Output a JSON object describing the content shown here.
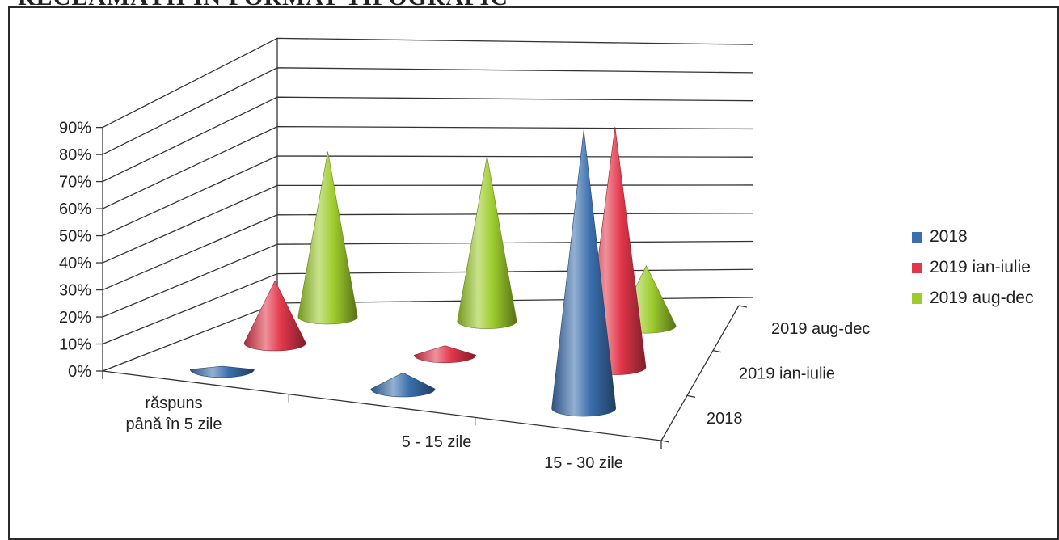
{
  "heading": "RECLAMAȚII ÎN FORMAT TIPOGRAFIC",
  "chart_data": {
    "type": "3d-cone",
    "title": "",
    "categories": [
      "răspuns până în 5 zile",
      "5 - 15 zile",
      "15 - 30 zile"
    ],
    "series": [
      {
        "name": "2018",
        "color": "#3a6fad",
        "values": [
          0.01,
          0.05,
          0.86
        ]
      },
      {
        "name": "2019 ian-iulie",
        "color": "#e2364a",
        "values": [
          0.2,
          0.03,
          0.77
        ]
      },
      {
        "name": "2019 aug-dec",
        "color": "#9dcc2c",
        "values": [
          0.55,
          0.55,
          0.2
        ]
      }
    ],
    "y_ticks": [
      "0%",
      "10%",
      "20%",
      "30%",
      "40%",
      "50%",
      "60%",
      "70%",
      "80%",
      "90%"
    ],
    "ylim": [
      0,
      0.9
    ],
    "depth_labels": [
      "2018",
      "2019 ian-iulie",
      "2019 aug-dec"
    ],
    "grid": true,
    "legend_position": "right"
  }
}
